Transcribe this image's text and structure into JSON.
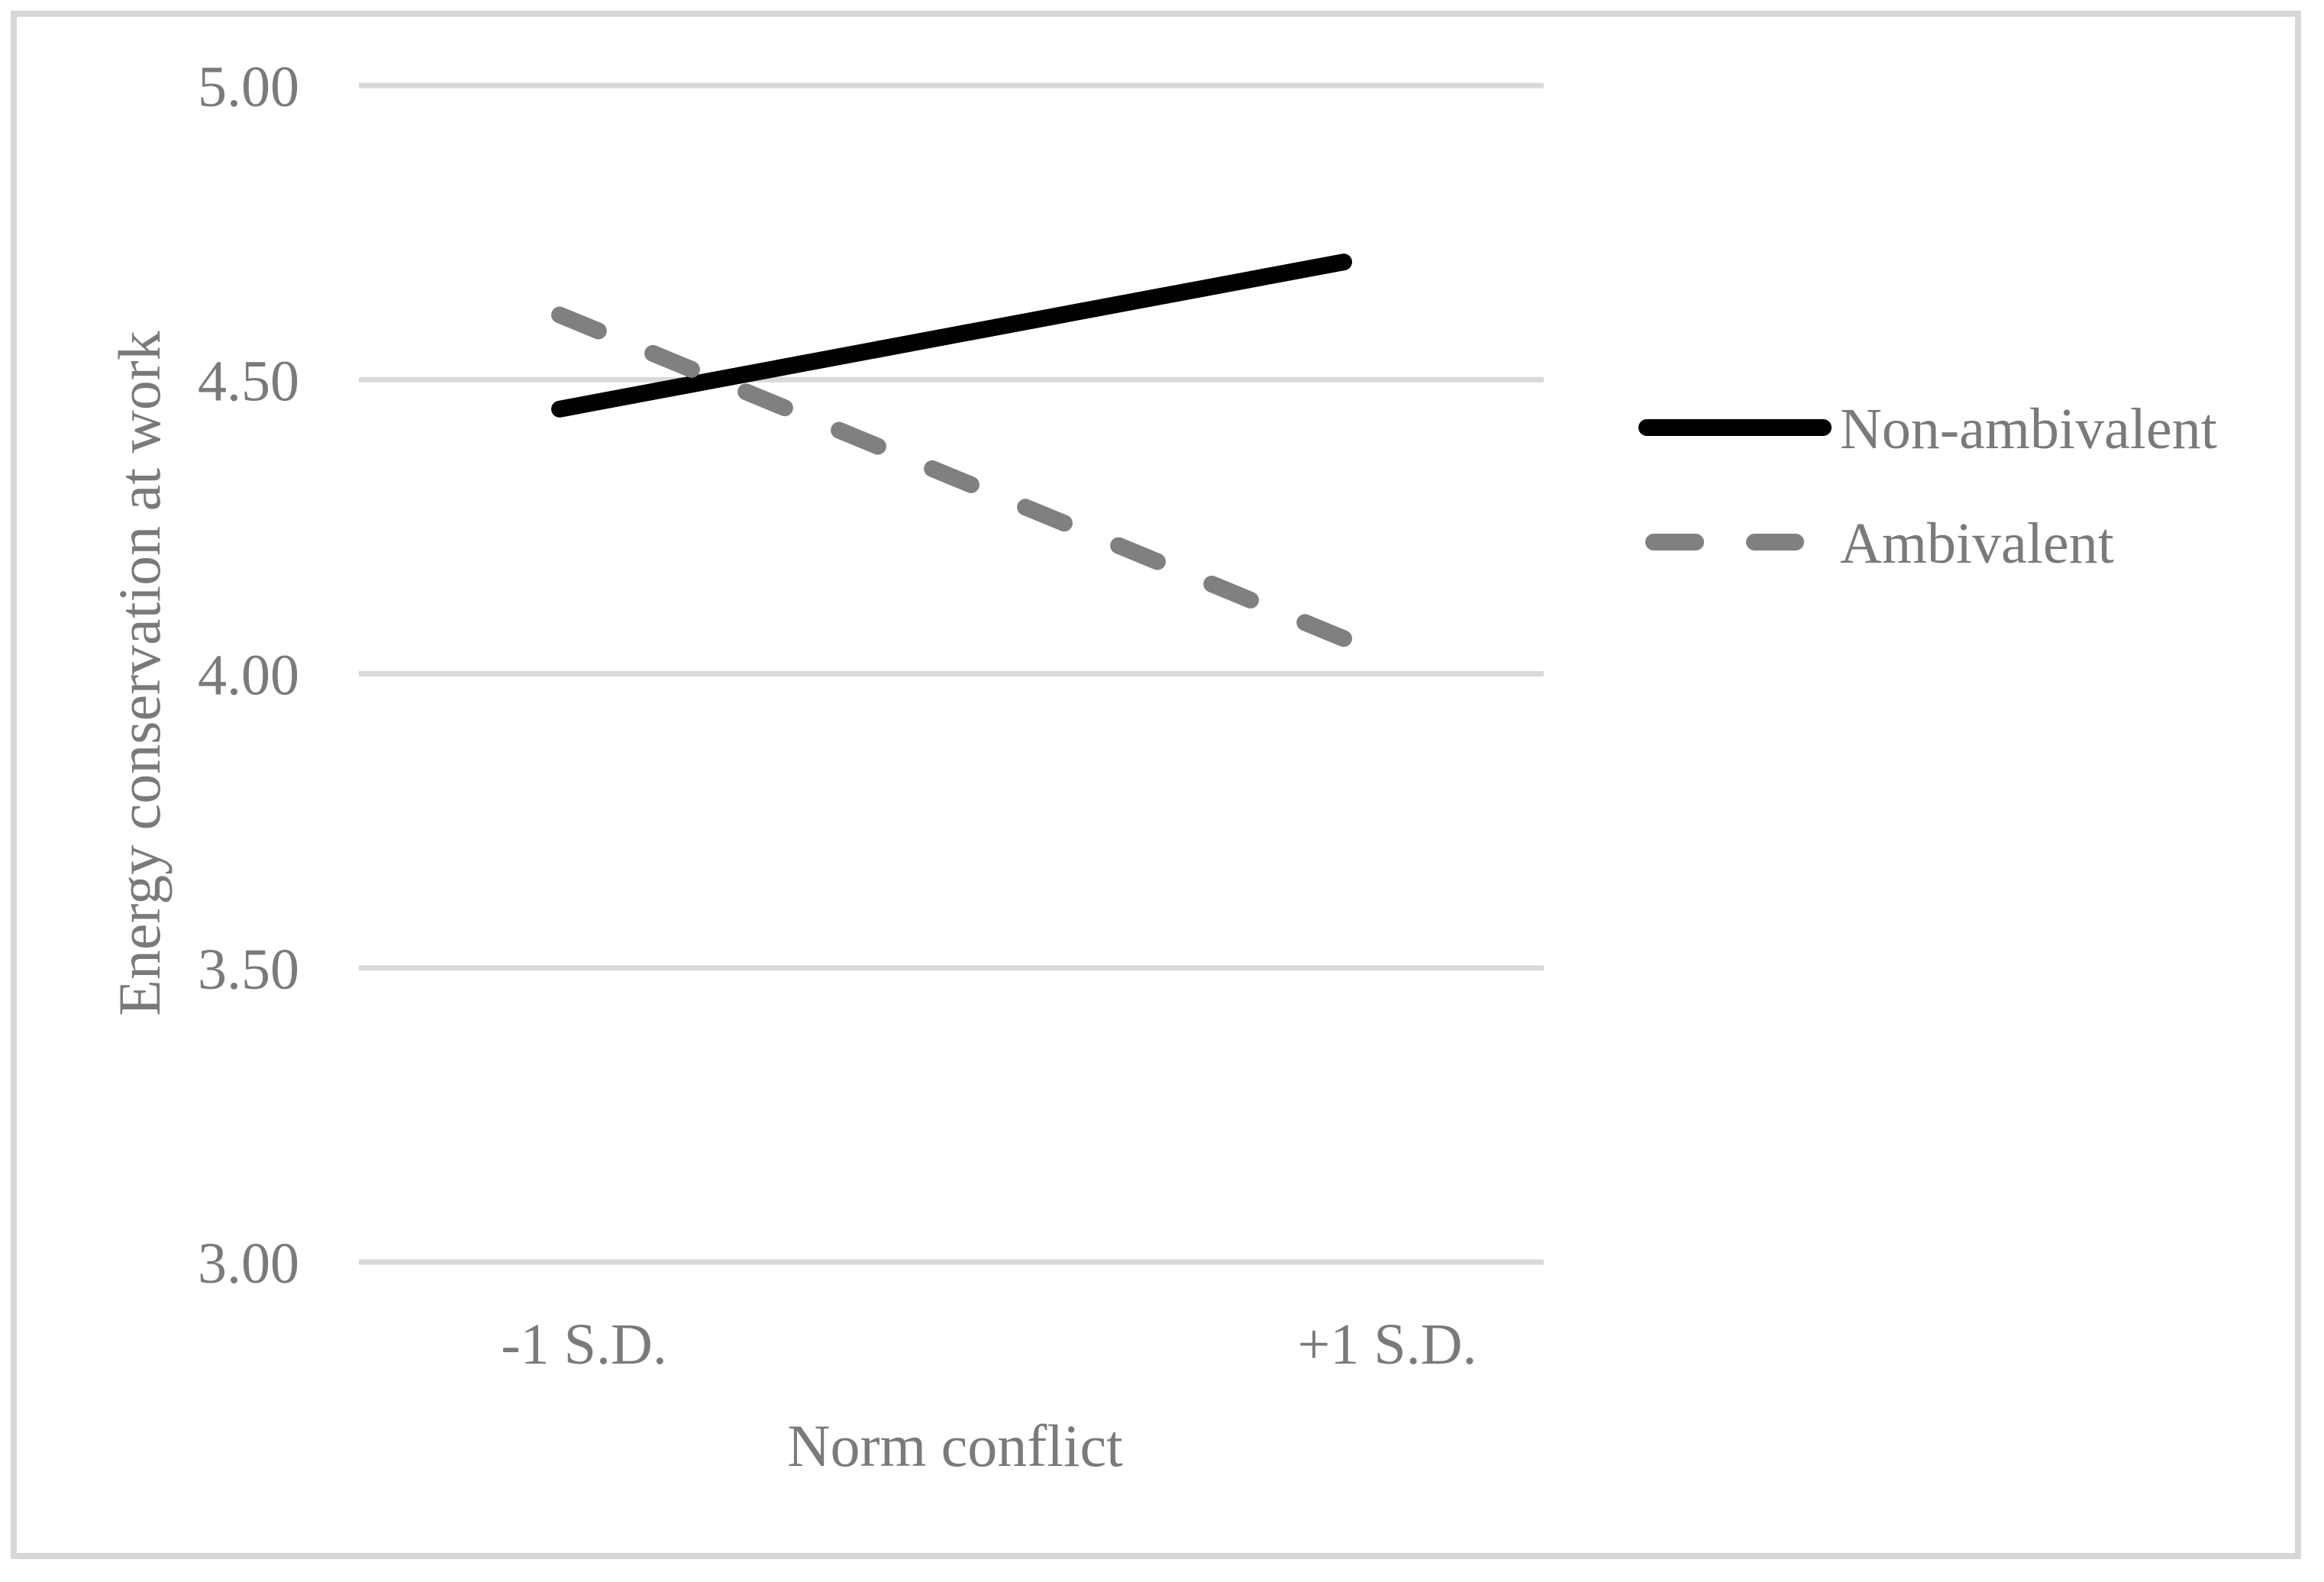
{
  "figure": {
    "background_color": "#ffffff",
    "border_color": "#d7d7d7"
  },
  "chart_data": {
    "type": "line",
    "title": "",
    "xlabel": "Norm conflict",
    "ylabel": "Energy conservation at work",
    "categories": [
      "-1 S.D.",
      "+1 S.D."
    ],
    "series": [
      {
        "name": "Non-ambivalent",
        "values": [
          4.45,
          4.7
        ],
        "color": "#000000",
        "line_style": "solid"
      },
      {
        "name": "Ambivalent",
        "values": [
          4.61,
          4.06
        ],
        "color": "#808080",
        "line_style": "dashed"
      }
    ],
    "ylim": [
      3.0,
      5.0
    ],
    "yticks": [
      {
        "value": 5.0,
        "label": "5.00"
      },
      {
        "value": 4.5,
        "label": "4.50"
      },
      {
        "value": 4.0,
        "label": "4.00"
      },
      {
        "value": 3.5,
        "label": "3.50"
      },
      {
        "value": 3.0,
        "label": "3.00"
      }
    ],
    "grid": true,
    "gridline_color": "#d9d9d9",
    "axis_text_color": "#7a7a7a",
    "legend_position": "right"
  }
}
